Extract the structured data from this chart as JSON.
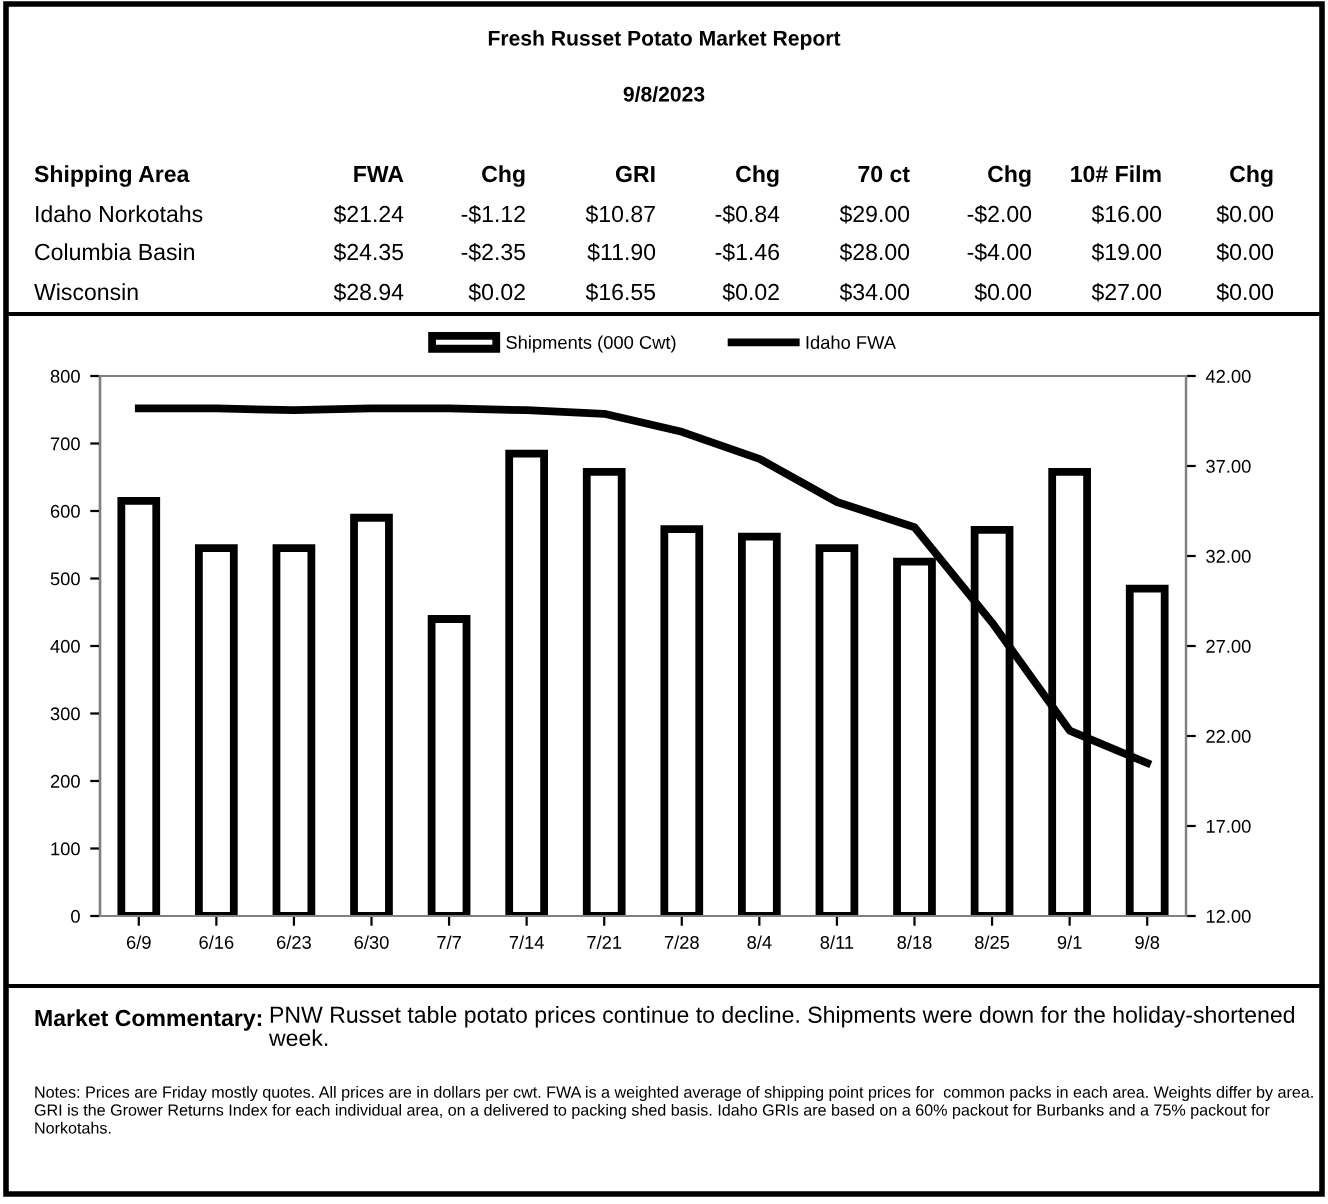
{
  "chart_data": {
    "type": "bar",
    "title": "Fresh Russet Potato Market Report",
    "subtitle": "9/8/2023",
    "categories": [
      "6/9",
      "6/16",
      "6/23",
      "6/30",
      "7/7",
      "7/14",
      "7/21",
      "7/28",
      "8/4",
      "8/11",
      "8/18",
      "8/25",
      "9/1",
      "9/8"
    ],
    "series": [
      {
        "name": "Shipments (000 Cwt)",
        "color": "#ffffff",
        "values": [
          615,
          545,
          545,
          590,
          440,
          685,
          658,
          573,
          562,
          545,
          525,
          572,
          658,
          485
        ]
      },
      {
        "name": "Idaho FWA",
        "type": "line",
        "axis": "y2",
        "color": "#000000",
        "values": [
          40.2,
          40.2,
          40.1,
          40.2,
          40.2,
          40.1,
          39.9,
          38.9,
          37.4,
          35.0,
          33.6,
          28.3,
          22.3,
          20.5
        ]
      }
    ],
    "ylim": [
      0,
      800
    ],
    "yticks": [
      0,
      100,
      200,
      300,
      400,
      500,
      600,
      700,
      800
    ],
    "y2lim": [
      12,
      42
    ],
    "y2ticks": [
      {
        "value": 12,
        "label": "12.00"
      },
      {
        "value": 17,
        "label": "17.00"
      },
      {
        "value": 22,
        "label": "22.00"
      },
      {
        "value": 27,
        "label": "27.00"
      },
      {
        "value": 32,
        "label": "32.00"
      },
      {
        "value": 37,
        "label": "37.00"
      },
      {
        "value": 42,
        "label": "42.00"
      }
    ],
    "grid": false,
    "legend": "top",
    "marker": "none",
    "line_style": "solid",
    "annotations": [
      "Shipping Area",
      "FWA",
      "Chg",
      "GRI",
      "Chg",
      "70 ct",
      "Chg",
      "10# Film",
      "Chg",
      "Idaho Norkotahs",
      "$21.24",
      "-$1.12",
      "$10.87",
      "-$0.84",
      "$29.00",
      "-$2.00",
      "$16.00",
      "$0.00",
      "Columbia Basin",
      "$24.35",
      "-$2.35",
      "$11.90",
      "-$1.46",
      "$28.00",
      "-$4.00",
      "$19.00",
      "$0.00",
      "Wisconsin",
      "$28.94",
      "$0.02",
      "$16.55",
      "$0.02",
      "$34.00",
      "$0.00",
      "$27.00",
      "$0.00",
      "Market Commentary:",
      "PNW Russet table potato prices continue to decline. Shipments were down for the holiday-shortened week.",
      "Notes: Prices are Friday mostly quotes. All prices are in dollars per cwt. FWA is a weighted average of shipping point prices for  common packs in each area. Weights differ by area. GRI is the Grower Returns Index for each individual area, on a delivered to packing shed basis. Idaho GRIs are based on a 60% packout for Burbanks and a 75% packout for Norkotahs."
    ]
  }
}
